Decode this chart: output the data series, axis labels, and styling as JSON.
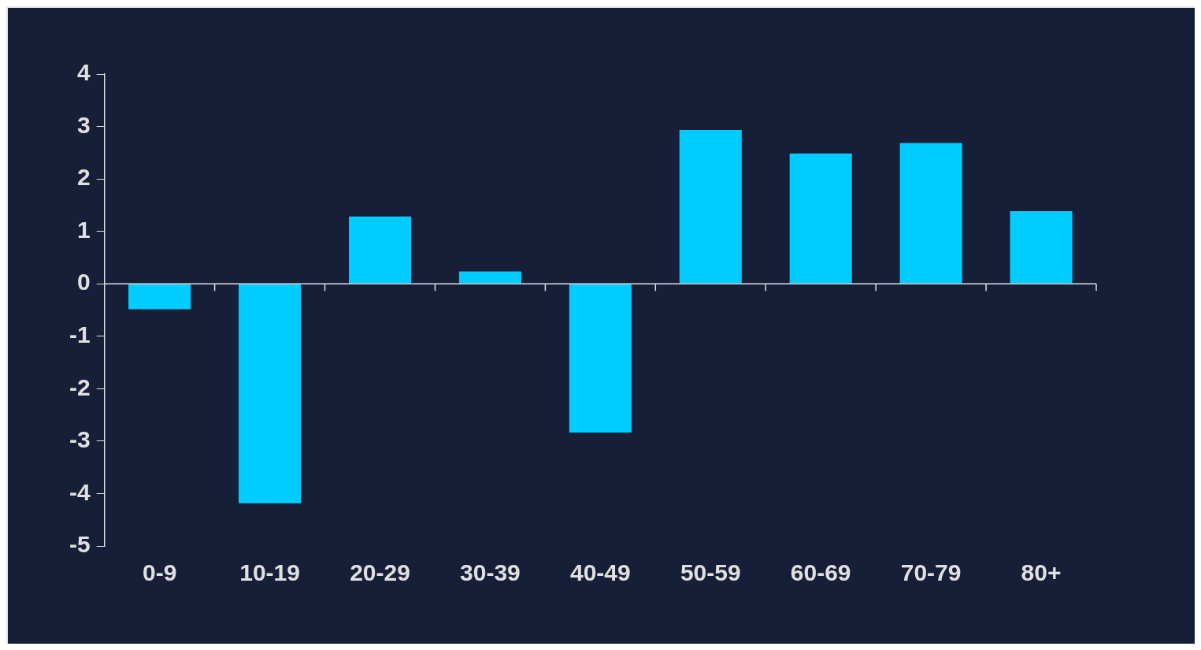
{
  "chart_data": {
    "type": "bar",
    "categories": [
      "0-9",
      "10-19",
      "20-29",
      "30-39",
      "40-49",
      "50-59",
      "60-69",
      "70-79",
      "80+"
    ],
    "values": [
      -0.5,
      -4.2,
      1.3,
      0.25,
      -2.85,
      2.95,
      2.5,
      2.7,
      1.4
    ],
    "color": "#00ccff",
    "ylim": [
      -5,
      4
    ],
    "yticks": [
      -5,
      -4,
      -3,
      -2,
      -1,
      0,
      1,
      2,
      3,
      4
    ]
  }
}
